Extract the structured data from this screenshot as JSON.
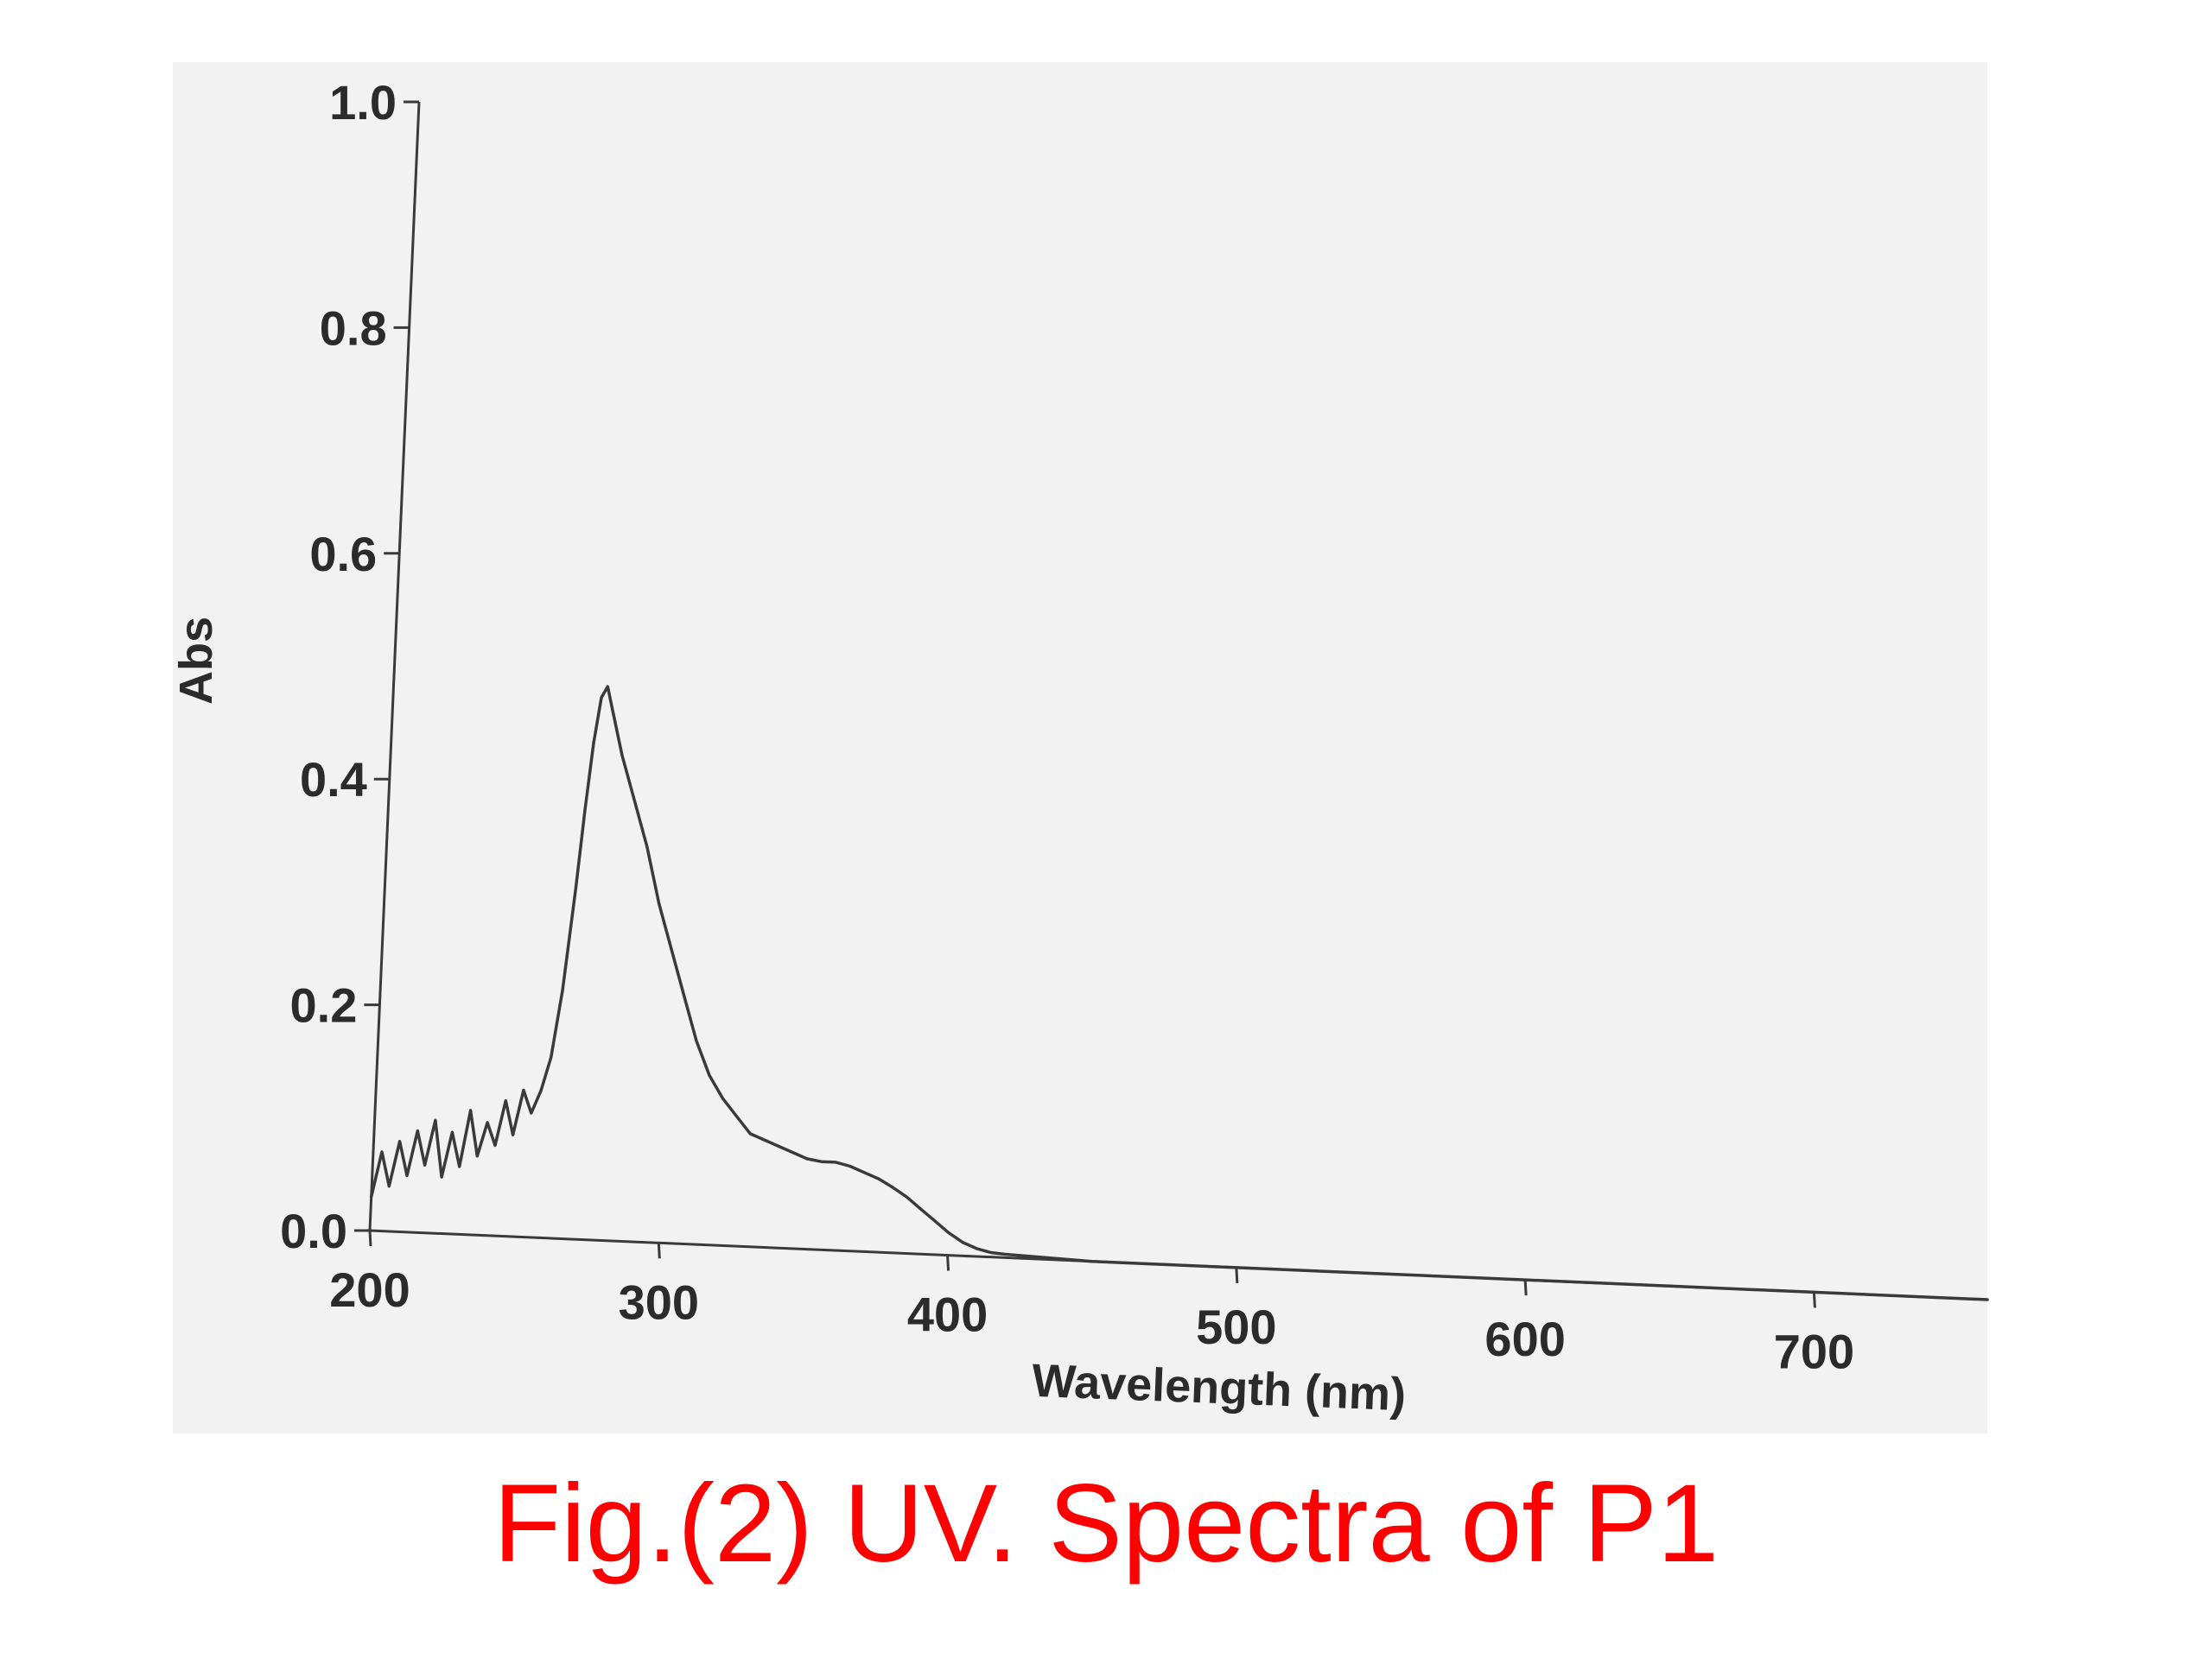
{
  "caption": "Fig.(2) UV. Spectra of P1",
  "chart_data": {
    "type": "line",
    "xlabel": "Wavelength (nm)",
    "ylabel": "Abs",
    "xlim": [
      200,
      760
    ],
    "ylim": [
      0.0,
      1.0
    ],
    "x_ticks": [
      "200",
      "300",
      "400",
      "500",
      "600",
      "700"
    ],
    "y_ticks": [
      "0.0",
      "0.2",
      "0.4",
      "0.6",
      "0.8",
      "1.0"
    ],
    "grid": false,
    "colors": {
      "line": "#3a3a3a",
      "axis": "#3a3a3a",
      "caption": "#ff0000",
      "panel": "#f1f2f1"
    },
    "series": [
      {
        "x": [
          200,
          203,
          206,
          209,
          212,
          215,
          218,
          221,
          224,
          227,
          230,
          233,
          236,
          239,
          242,
          245,
          248,
          251,
          254,
          257,
          260,
          263,
          266,
          268,
          270,
          272,
          274,
          276,
          280,
          285,
          290,
          295,
          300,
          305,
          310,
          315,
          320,
          325,
          330,
          335,
          340,
          345,
          350,
          355,
          360,
          365,
          370,
          375,
          380,
          385,
          390,
          395,
          400,
          405,
          410,
          415,
          420,
          430,
          440,
          450,
          500,
          550,
          600,
          650,
          700,
          760
        ],
        "y": [
          0.03,
          0.07,
          0.04,
          0.08,
          0.05,
          0.09,
          0.06,
          0.1,
          0.05,
          0.09,
          0.06,
          0.11,
          0.07,
          0.1,
          0.08,
          0.12,
          0.09,
          0.13,
          0.11,
          0.13,
          0.16,
          0.22,
          0.31,
          0.38,
          0.44,
          0.48,
          0.49,
          0.47,
          0.43,
          0.39,
          0.35,
          0.3,
          0.26,
          0.22,
          0.18,
          0.15,
          0.13,
          0.115,
          0.1,
          0.095,
          0.09,
          0.085,
          0.08,
          0.078,
          0.078,
          0.075,
          0.07,
          0.065,
          0.058,
          0.05,
          0.04,
          0.03,
          0.02,
          0.012,
          0.007,
          0.004,
          0.003,
          0.002,
          0.001,
          0.0,
          0.0,
          0.0,
          0.0,
          0.0,
          0.0,
          0.0
        ]
      }
    ]
  }
}
